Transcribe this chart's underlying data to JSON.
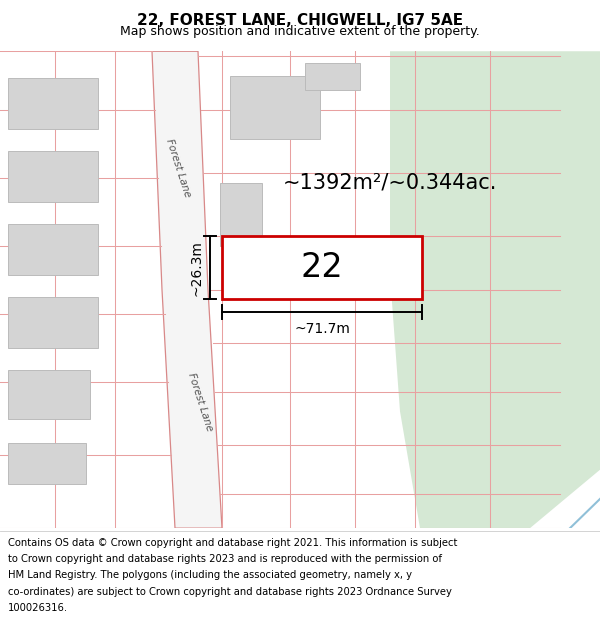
{
  "title": "22, FOREST LANE, CHIGWELL, IG7 5AE",
  "subtitle": "Map shows position and indicative extent of the property.",
  "area_label": "~1392m²/~0.344ac.",
  "number_label": "22",
  "width_label": "~71.7m",
  "height_label": "~26.3m",
  "road_label_1": "Forest Lane",
  "road_label_2": "Forest Lane",
  "footer_lines": [
    "Contains OS data © Crown copyright and database right 2021. This information is subject",
    "to Crown copyright and database rights 2023 and is reproduced with the permission of",
    "HM Land Registry. The polygons (including the associated geometry, namely x, y",
    "co-ordinates) are subject to Crown copyright and database rights 2023 Ordnance Survey",
    "100026316."
  ],
  "bg_color": "#f0eeec",
  "green_color": "#d5e8d4",
  "road_fill": "#f5f5f5",
  "road_edge": "#d88888",
  "grid_line_color": "#e8a0a0",
  "building_fill": "#d4d4d4",
  "building_edge": "#bbbbbb",
  "plot_outline_color": "#cc0000",
  "plot_fill": "#ffffff",
  "title_fontsize": 11,
  "subtitle_fontsize": 9,
  "footer_fontsize": 7.2
}
